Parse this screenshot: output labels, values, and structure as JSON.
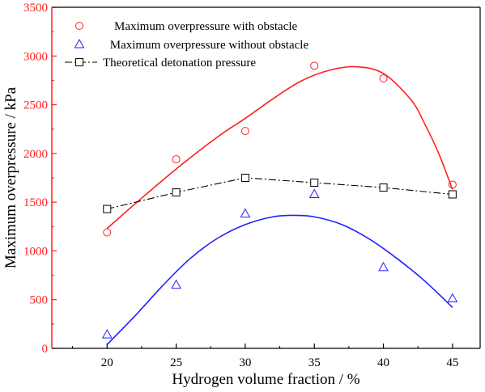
{
  "chart_data": {
    "type": "scatter",
    "title": "",
    "xlabel": "Hydrogen volume fraction / %",
    "ylabel": "Maximum overpressure / kPa",
    "xlim": [
      16,
      47
    ],
    "ylim": [
      0,
      3500
    ],
    "xticks": [
      20,
      25,
      30,
      35,
      40,
      45
    ],
    "yticks": [
      0,
      500,
      1000,
      1500,
      2000,
      2500,
      3000,
      3500
    ],
    "grid": false,
    "legend_position": "top-left",
    "series": [
      {
        "name": "Maximum overpressure with obstacle",
        "marker": "circle",
        "color": "#ff2020",
        "x": [
          20,
          25,
          30,
          35,
          40,
          45
        ],
        "y": [
          1190,
          1940,
          2230,
          2900,
          2770,
          1680
        ],
        "fit": "curve",
        "fit_curve": {
          "x": [
            20,
            22,
            25,
            28,
            30,
            32,
            34,
            36,
            38,
            40,
            42,
            43,
            44,
            45
          ],
          "y": [
            1230,
            1480,
            1840,
            2170,
            2360,
            2560,
            2740,
            2850,
            2890,
            2820,
            2550,
            2300,
            2000,
            1630
          ]
        }
      },
      {
        "name": " Maximum overpressure without obstacle",
        "marker": "triangle",
        "color": "#2020ff",
        "x": [
          20,
          25,
          30,
          35,
          40,
          45
        ],
        "y": [
          140,
          650,
          1380,
          1580,
          830,
          510
        ],
        "fit": "curve",
        "fit_curve": {
          "x": [
            20,
            22,
            24,
            26,
            28,
            30,
            32,
            33.5,
            35,
            37,
            39,
            41,
            43,
            45
          ],
          "y": [
            40,
            330,
            640,
            920,
            1130,
            1270,
            1350,
            1365,
            1350,
            1270,
            1120,
            920,
            690,
            420
          ]
        }
      },
      {
        "name": "Theoretical detonation pressure",
        "marker": "square",
        "color": "#000000",
        "x": [
          20,
          25,
          30,
          35,
          40,
          45
        ],
        "y": [
          1430,
          1600,
          1750,
          1700,
          1650,
          1580
        ],
        "fit": "dash-dot line"
      }
    ],
    "colors": {
      "left_axis": "#ff2020",
      "frame": "#000000"
    }
  }
}
